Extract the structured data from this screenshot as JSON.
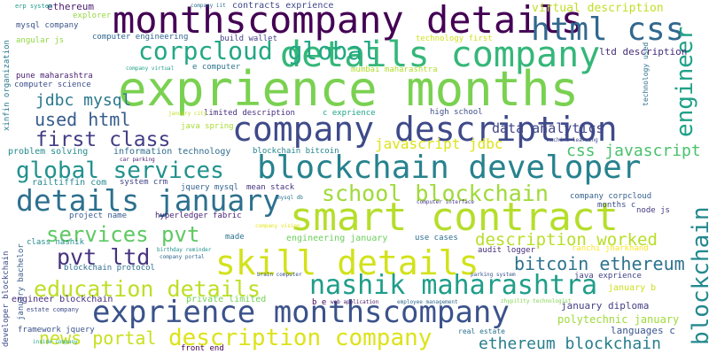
{
  "words": [
    {
      "text": "exprience months",
      "color": "#7ad151"
    },
    {
      "text": "monthscompany details",
      "color": "#440154"
    },
    {
      "text": "details company",
      "color": "#35b779"
    },
    {
      "text": "html css",
      "color": "#31688e"
    },
    {
      "text": "corpcloud global",
      "color": "#22a884"
    },
    {
      "text": "company description",
      "color": "#3e4a89"
    },
    {
      "text": "blockchain developer",
      "color": "#26828e"
    },
    {
      "text": "smart contract",
      "color": "#b5de2b"
    },
    {
      "text": "details january",
      "color": "#2d708e"
    },
    {
      "text": "skill details",
      "color": "#d2e21b"
    },
    {
      "text": "nashik maharashtra",
      "color": "#1f9e89"
    },
    {
      "text": "exprience monthscompany",
      "color": "#3b528b"
    },
    {
      "text": "description company",
      "color": "#dce319"
    },
    {
      "text": "education details",
      "color": "#bddf26"
    },
    {
      "text": "global services",
      "color": "#21918c"
    },
    {
      "text": "first class",
      "color": "#433e85"
    },
    {
      "text": "school blockchain",
      "color": "#a0da39"
    },
    {
      "text": "services pvt",
      "color": "#5ec962"
    },
    {
      "text": "pvt ltd",
      "color": "#46327e"
    },
    {
      "text": "bitcoin ethereum",
      "color": "#2c728e"
    },
    {
      "text": "news portal",
      "color": "#c8e020"
    },
    {
      "text": "ethereum blockchain",
      "color": "#287d8e"
    },
    {
      "text": "used html",
      "color": "#365c8d"
    },
    {
      "text": "jdbc mysql",
      "color": "#2a788e"
    },
    {
      "text": "javascript jdbc",
      "color": "#dde318"
    },
    {
      "text": "css javascript",
      "color": "#4ac16d"
    },
    {
      "text": "description worked",
      "color": "#b8de29"
    },
    {
      "text": "blockchain",
      "color": "#23898e"
    },
    {
      "text": "engineer",
      "color": "#1fa187"
    },
    {
      "text": "virtual description",
      "color": "#c0df25"
    },
    {
      "text": "ltd description",
      "color": "#472c7a"
    },
    {
      "text": "january diploma",
      "color": "#433d84"
    },
    {
      "text": "polytechnic january",
      "color": "#9fda3a"
    },
    {
      "text": "data analytics",
      "color": "#404688"
    },
    {
      "text": "january b",
      "color": "#cae11f"
    },
    {
      "text": "languages c",
      "color": "#39558c"
    },
    {
      "text": "ethereum",
      "color": "#481a6c"
    },
    {
      "text": "erp system",
      "color": "#1f998a"
    },
    {
      "text": "company iit",
      "color": "#2d718e"
    },
    {
      "text": "contracts exprience",
      "color": "#3f4889"
    },
    {
      "text": "explorer",
      "color": "#95d840"
    },
    {
      "text": "mysql company",
      "color": "#3a538b"
    },
    {
      "text": "angular js",
      "color": "#90d743"
    },
    {
      "text": "computer engineering",
      "color": "#31668e"
    },
    {
      "text": "build wallet",
      "color": "#424186"
    },
    {
      "text": "technology first",
      "color": "#d0e11c"
    },
    {
      "text": "e computer",
      "color": "#2b748e"
    },
    {
      "text": "mumbai maharashtra",
      "color": "#b2dd2d"
    },
    {
      "text": "pune maharashtra",
      "color": "#482071"
    },
    {
      "text": "computer science",
      "color": "#3d4d8a"
    },
    {
      "text": "xinfin organization",
      "color": "#29798e"
    },
    {
      "text": "company virtual",
      "color": "#1fa088"
    },
    {
      "text": "limited description",
      "color": "#46307e"
    },
    {
      "text": "c exprience",
      "color": "#20a486"
    },
    {
      "text": "high school",
      "color": "#3c4f8a"
    },
    {
      "text": "technology used",
      "color": "#2e6f8e"
    },
    {
      "text": "january city",
      "color": "#c2df23"
    },
    {
      "text": "java spring",
      "color": "#a8db34"
    },
    {
      "text": "information technology",
      "color": "#2f6c8e"
    },
    {
      "text": "problem solving",
      "color": "#238a8d"
    },
    {
      "text": "blockchain bitcoin",
      "color": "#25848e"
    },
    {
      "text": "machine learning",
      "color": "#3f4788"
    },
    {
      "text": "car parking",
      "color": "#481d6f"
    },
    {
      "text": "railtiffin com",
      "color": "#24878e"
    },
    {
      "text": "system crm",
      "color": "#414487"
    },
    {
      "text": "jquery mysql",
      "color": "#33638d"
    },
    {
      "text": "mean stack",
      "color": "#46337f"
    },
    {
      "text": "mysql db",
      "color": "#2a768e"
    },
    {
      "text": "computer interface",
      "color": "#443983"
    },
    {
      "text": "company corpcloud",
      "color": "#34618d"
    },
    {
      "text": "months c",
      "color": "#3d4e8a"
    },
    {
      "text": "node js",
      "color": "#453882"
    },
    {
      "text": "project name",
      "color": "#38598c"
    },
    {
      "text": "hyperledger fabric",
      "color": "#482475"
    },
    {
      "text": "developer blockchain",
      "color": "#3e4989"
    },
    {
      "text": "class nashik",
      "color": "#228c8d"
    },
    {
      "text": "made",
      "color": "#2c738e"
    },
    {
      "text": "company vision",
      "color": "#e5e419"
    },
    {
      "text": "engineering january",
      "color": "#6ccd5a"
    },
    {
      "text": "use cases",
      "color": "#2e6e8e"
    },
    {
      "text": "ranchi jharkhand",
      "color": "#fde725"
    },
    {
      "text": "audit logger",
      "color": "#472d7b"
    },
    {
      "text": "birthday reminder",
      "color": "#20928c"
    },
    {
      "text": "company portal",
      "color": "#31678e"
    },
    {
      "text": "blockchain protocol",
      "color": "#2e6d8e"
    },
    {
      "text": "january bachelor",
      "color": "#375a8c"
    },
    {
      "text": "engineer blockchain",
      "color": "#472f7d"
    },
    {
      "text": "brain computer",
      "color": "#3b518b"
    },
    {
      "text": "parking system",
      "color": "#3a548c"
    },
    {
      "text": "java exprience",
      "color": "#414287"
    },
    {
      "text": "estate company",
      "color": "#3e4c8a"
    },
    {
      "text": "private limited",
      "color": "#74d055"
    },
    {
      "text": "b e",
      "color": "#440154"
    },
    {
      "text": "web application",
      "color": "#481668"
    },
    {
      "text": "employee management",
      "color": "#2f6b8e"
    },
    {
      "text": "zhypility technologist",
      "color": "#7fd34e"
    },
    {
      "text": "framework jquery",
      "color": "#3b528b"
    },
    {
      "text": "inside company",
      "color": "#21a685"
    },
    {
      "text": "real estate",
      "color": "#2c728e"
    },
    {
      "text": "front end",
      "color": "#440154"
    }
  ]
}
